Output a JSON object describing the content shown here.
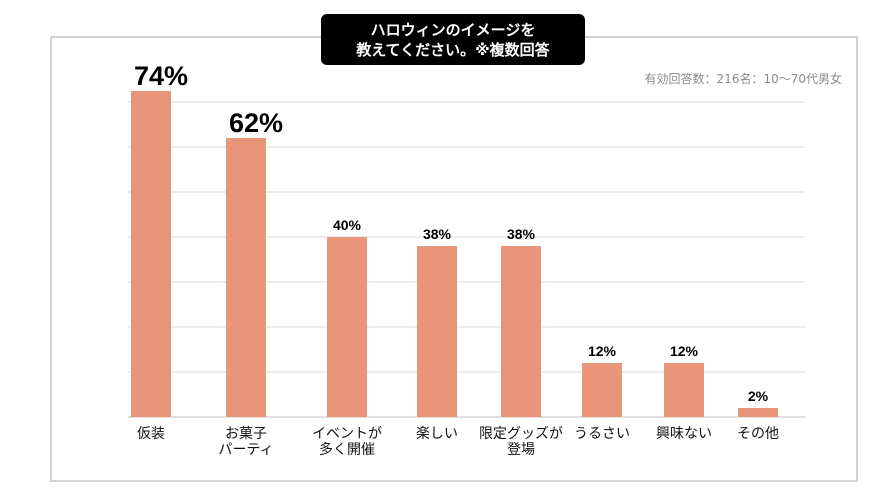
{
  "chart_data": {
    "type": "bar",
    "title_lines": [
      "ハロウィンのイメージを",
      "教えてください。※複数回答"
    ],
    "subtitle": "有効回答数：216名：10〜70代男女",
    "categories": [
      [
        "仮装"
      ],
      [
        "お菓子",
        "パーティ"
      ],
      [
        "イベントが",
        "多く開催"
      ],
      [
        "楽しい"
      ],
      [
        "限定グッズが",
        "登場"
      ],
      [
        "うるさい"
      ],
      [
        "興味ない"
      ],
      [
        "その他"
      ]
    ],
    "values": [
      74,
      62,
      40,
      38,
      38,
      12,
      12,
      2
    ],
    "value_labels": [
      "74%",
      "62%",
      "40%",
      "38%",
      "38%",
      "12%",
      "12%",
      "2%"
    ],
    "ylim": [
      0,
      70
    ],
    "grid": true,
    "bar_color": "#e8957a"
  }
}
